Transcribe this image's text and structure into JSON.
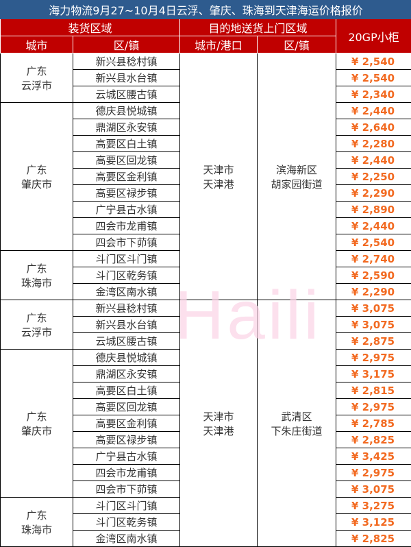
{
  "title": "海力物流9月27~10月4日云浮、肇庆、珠海到天津海运价格报价",
  "headers": {
    "loading_area": "装货区域",
    "dest_area": "目的地送货上门区域",
    "price": "20GP小柜",
    "city": "城市",
    "town": "区/镇",
    "dest_city": "城市/港口",
    "dest_town": "区/镇"
  },
  "watermark": "Haili",
  "sections": [
    {
      "dest_city": "天津市\n天津港",
      "dest_town": "滨海新区\n胡家园街道",
      "groups": [
        {
          "city": "广东\n云浮市",
          "rows": [
            [
              "新兴县稔村镇",
              "¥ 2,540"
            ],
            [
              "新兴县水台镇",
              "¥ 2,540"
            ],
            [
              "云城区腰古镇",
              "¥ 2,340"
            ]
          ]
        },
        {
          "city": "广东\n肇庆市",
          "rows": [
            [
              "德庆县悦城镇",
              "¥ 2,440"
            ],
            [
              "鼎湖区永安镇",
              "¥ 2,640"
            ],
            [
              "高要区白土镇",
              "¥ 2,280"
            ],
            [
              "高要区回龙镇",
              "¥ 2,440"
            ],
            [
              "高要区金利镇",
              "¥ 2,250"
            ],
            [
              "高要区禄步镇",
              "¥ 2,290"
            ],
            [
              "广宁县古水镇",
              "¥ 2,890"
            ],
            [
              "四会市龙甫镇",
              "¥ 2,440"
            ],
            [
              "四会市下茆镇",
              "¥ 2,540"
            ]
          ]
        },
        {
          "city": "广东\n珠海市",
          "rows": [
            [
              "斗门区斗门镇",
              "¥ 2,740"
            ],
            [
              "斗门区乾务镇",
              "¥ 2,590"
            ],
            [
              "金湾区南水镇",
              "¥ 2,290"
            ]
          ]
        }
      ]
    },
    {
      "dest_city": "天津市\n天津港",
      "dest_town": "武清区\n下朱庄街道",
      "groups": [
        {
          "city": "广东\n云浮市",
          "rows": [
            [
              "新兴县稔村镇",
              "¥ 3,075"
            ],
            [
              "新兴县水台镇",
              "¥ 3,075"
            ],
            [
              "云城区腰古镇",
              "¥ 2,875"
            ]
          ]
        },
        {
          "city": "广东\n肇庆市",
          "rows": [
            [
              "德庆县悦城镇",
              "¥ 2,975"
            ],
            [
              "鼎湖区永安镇",
              "¥ 3,175"
            ],
            [
              "高要区白土镇",
              "¥ 2,815"
            ],
            [
              "高要区回龙镇",
              "¥ 2,975"
            ],
            [
              "高要区金利镇",
              "¥ 2,785"
            ],
            [
              "高要区禄步镇",
              "¥ 2,825"
            ],
            [
              "广宁县古水镇",
              "¥ 3,425"
            ],
            [
              "四会市龙甫镇",
              "¥ 2,975"
            ],
            [
              "四会市下茆镇",
              "¥ 3,075"
            ]
          ]
        },
        {
          "city": "广东\n珠海市",
          "rows": [
            [
              "斗门区斗门镇",
              "¥ 3,275"
            ],
            [
              "斗门区乾务镇",
              "¥ 3,125"
            ],
            [
              "金湾区南水镇",
              "¥ 2,825"
            ]
          ]
        }
      ]
    }
  ]
}
